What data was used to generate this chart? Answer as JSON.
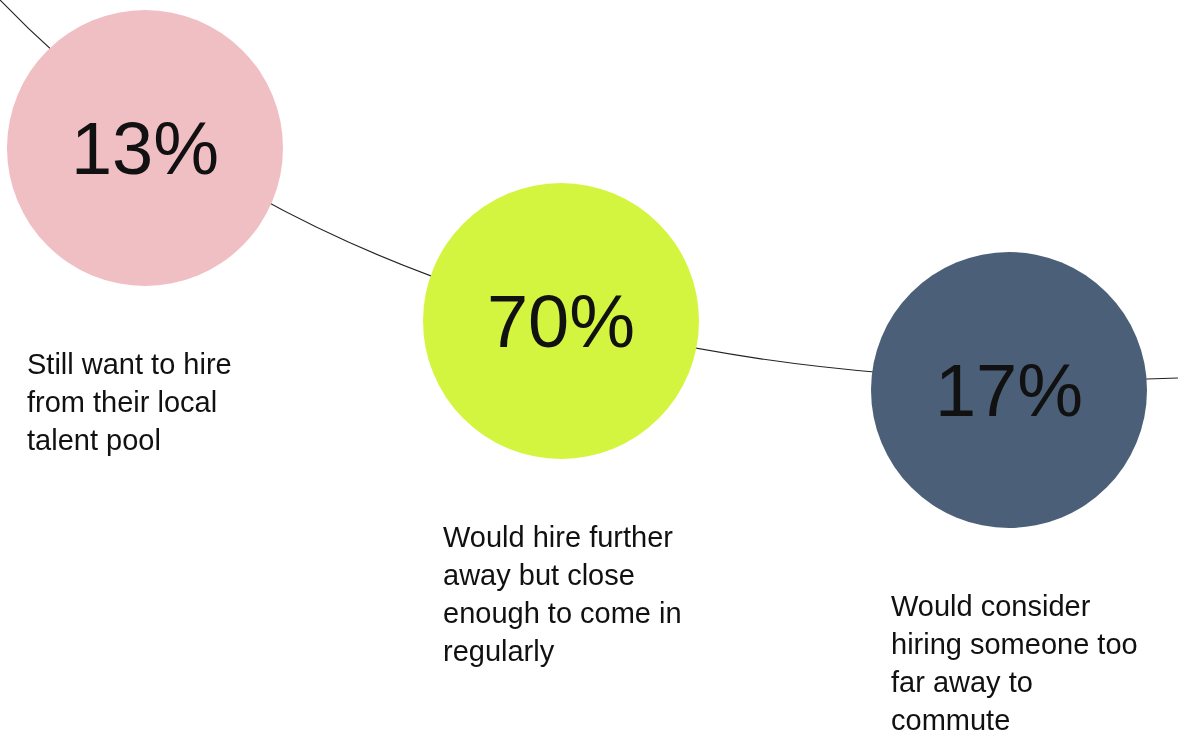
{
  "chart_data": {
    "type": "other",
    "categories": [
      "Still want to hire from their local talent pool",
      "Would hire further away but close enough to come in regularly",
      "Would consider hiring someone too far away to commute"
    ],
    "values": [
      13,
      70,
      17
    ],
    "value_labels": [
      "13%",
      "70%",
      "17%"
    ],
    "colors": [
      "#f0bfc4",
      "#d4f53f",
      "#4b6078"
    ]
  }
}
